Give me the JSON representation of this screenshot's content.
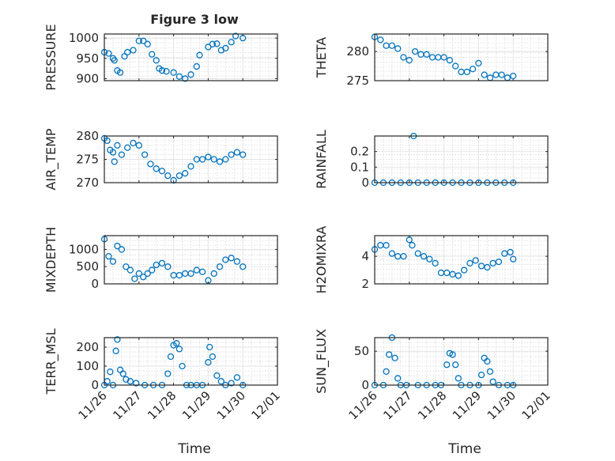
{
  "title": "Figure 3 low",
  "x_axis_label": "Time",
  "x_tick_labels": [
    "11/26",
    "11/27",
    "11/28",
    "11/29",
    "11/30",
    "12/01"
  ],
  "marker_color": "#0072BD",
  "chart_data": [
    {
      "type": "scatter",
      "title": "Figure 3 low",
      "ylabel": "PRESSURE",
      "xlabel": "",
      "xticks": [
        "11/26",
        "11/27",
        "11/28",
        "11/29",
        "11/30",
        "12/01"
      ],
      "xlim": [
        "11/26",
        "12/01"
      ],
      "ylim": [
        895,
        1010
      ],
      "yticks": [
        900,
        950,
        1000
      ],
      "grid": true,
      "series": [
        {
          "x": [
            "11/26 00:00",
            "11/26 03:00",
            "11/26 06:00",
            "11/26 07:00",
            "11/26 09:00",
            "11/26 11:00",
            "11/26 14:00",
            "11/26 16:00",
            "11/26 20:00",
            "11/27 00:00",
            "11/27 03:00",
            "11/27 06:00",
            "11/27 09:00",
            "11/27 12:00",
            "11/27 14:00",
            "11/27 16:00",
            "11/27 19:00",
            "11/28 00:00",
            "11/28 04:00",
            "11/28 08:00",
            "11/28 12:00",
            "11/28 16:00",
            "11/28 18:00",
            "11/29 00:00",
            "11/29 03:00",
            "11/29 06:00",
            "11/29 09:00",
            "11/29 12:00",
            "11/29 16:00",
            "11/29 19:00",
            "11/30 00:00"
          ],
          "y": [
            965,
            962,
            950,
            945,
            920,
            915,
            955,
            965,
            970,
            993,
            993,
            985,
            960,
            945,
            925,
            920,
            918,
            915,
            905,
            900,
            910,
            930,
            958,
            978,
            985,
            986,
            970,
            975,
            990,
            1005,
            1000
          ]
        }
      ]
    },
    {
      "type": "scatter",
      "ylabel": "THETA",
      "xlabel": "",
      "xticks": [
        "11/26",
        "11/27",
        "11/28",
        "11/29",
        "11/30",
        "12/01"
      ],
      "xlim": [
        "11/26",
        "12/01"
      ],
      "ylim": [
        275,
        283
      ],
      "yticks": [
        275,
        280
      ],
      "grid": true,
      "series": [
        {
          "x": [
            "11/26 00:00",
            "11/26 04:00",
            "11/26 08:00",
            "11/26 12:00",
            "11/26 16:00",
            "11/26 20:00",
            "11/27 00:00",
            "11/27 04:00",
            "11/27 08:00",
            "11/27 12:00",
            "11/27 16:00",
            "11/27 20:00",
            "11/28 00:00",
            "11/28 04:00",
            "11/28 08:00",
            "11/28 12:00",
            "11/28 16:00",
            "11/28 20:00",
            "11/29 00:00",
            "11/29 04:00",
            "11/29 08:00",
            "11/29 12:00",
            "11/29 16:00",
            "11/29 20:00",
            "11/30 00:00"
          ],
          "y": [
            282.5,
            282.0,
            281.0,
            281.0,
            280.5,
            279.0,
            278.5,
            280.0,
            279.5,
            279.5,
            279.0,
            279.0,
            279.0,
            278.5,
            277.5,
            276.5,
            276.5,
            277.0,
            278.0,
            276.0,
            275.5,
            276.0,
            276.0,
            275.5,
            275.8
          ]
        }
      ]
    },
    {
      "type": "scatter",
      "ylabel": "AIR_TEMP",
      "xlabel": "",
      "xticks": [
        "11/26",
        "11/27",
        "11/28",
        "11/29",
        "11/30",
        "12/01"
      ],
      "xlim": [
        "11/26",
        "12/01"
      ],
      "ylim": [
        270,
        280
      ],
      "yticks": [
        270,
        275,
        280
      ],
      "grid": true,
      "series": [
        {
          "x": [
            "11/26 00:00",
            "11/26 02:00",
            "11/26 04:00",
            "11/26 06:00",
            "11/26 07:00",
            "11/26 09:00",
            "11/26 12:00",
            "11/26 16:00",
            "11/26 20:00",
            "11/27 00:00",
            "11/27 04:00",
            "11/27 08:00",
            "11/27 12:00",
            "11/27 16:00",
            "11/27 20:00",
            "11/28 00:00",
            "11/28 04:00",
            "11/28 08:00",
            "11/28 12:00",
            "11/28 16:00",
            "11/28 20:00",
            "11/29 00:00",
            "11/29 04:00",
            "11/29 08:00",
            "11/29 12:00",
            "11/29 16:00",
            "11/29 20:00",
            "11/30 00:00"
          ],
          "y": [
            279.5,
            279.0,
            277.0,
            276.5,
            274.5,
            278.0,
            276.0,
            277.5,
            278.5,
            278.0,
            276.0,
            274.0,
            273.0,
            272.5,
            271.5,
            270.5,
            271.5,
            272.0,
            273.5,
            275.0,
            275.0,
            275.5,
            275.0,
            274.5,
            275.0,
            276.0,
            276.5,
            276.0
          ]
        }
      ]
    },
    {
      "type": "scatter",
      "ylabel": "RAINFALL",
      "xlabel": "",
      "xticks": [
        "11/26",
        "11/27",
        "11/28",
        "11/29",
        "11/30",
        "12/01"
      ],
      "xlim": [
        "11/26",
        "12/01"
      ],
      "ylim": [
        0,
        0.3
      ],
      "yticks": [
        0,
        0.1,
        0.2
      ],
      "grid": true,
      "series": [
        {
          "x": [
            "11/26 00:00",
            "11/26 06:00",
            "11/26 12:00",
            "11/26 18:00",
            "11/27 00:00",
            "11/27 03:00",
            "11/27 06:00",
            "11/27 12:00",
            "11/27 18:00",
            "11/28 00:00",
            "11/28 06:00",
            "11/28 12:00",
            "11/28 18:00",
            "11/29 00:00",
            "11/29 06:00",
            "11/29 12:00",
            "11/29 18:00",
            "11/30 00:00"
          ],
          "y": [
            0,
            0,
            0,
            0,
            0,
            0.3,
            0,
            0,
            0,
            0,
            0,
            0,
            0,
            0,
            0,
            0,
            0,
            0
          ]
        }
      ]
    },
    {
      "type": "scatter",
      "ylabel": "MIXDEPTH",
      "xlabel": "",
      "xticks": [
        "11/26",
        "11/27",
        "11/28",
        "11/29",
        "11/30",
        "12/01"
      ],
      "xlim": [
        "11/26",
        "12/01"
      ],
      "ylim": [
        0,
        1400
      ],
      "yticks": [
        0,
        500,
        1000
      ],
      "grid": true,
      "series": [
        {
          "x": [
            "11/26 00:00",
            "11/26 03:00",
            "11/26 06:00",
            "11/26 09:00",
            "11/26 12:00",
            "11/26 15:00",
            "11/26 18:00",
            "11/26 21:00",
            "11/27 00:00",
            "11/27 03:00",
            "11/27 06:00",
            "11/27 09:00",
            "11/27 12:00",
            "11/27 16:00",
            "11/27 20:00",
            "11/28 00:00",
            "11/28 04:00",
            "11/28 08:00",
            "11/28 12:00",
            "11/28 16:00",
            "11/28 20:00",
            "11/29 00:00",
            "11/29 04:00",
            "11/29 08:00",
            "11/29 12:00",
            "11/29 16:00",
            "11/29 20:00",
            "11/30 00:00"
          ],
          "y": [
            1300,
            800,
            650,
            1100,
            1000,
            500,
            400,
            150,
            300,
            200,
            300,
            400,
            550,
            600,
            500,
            250,
            250,
            300,
            300,
            400,
            350,
            100,
            300,
            500,
            700,
            750,
            650,
            500
          ]
        }
      ]
    },
    {
      "type": "scatter",
      "ylabel": "H2OMIXRA",
      "xlabel": "",
      "xticks": [
        "11/26",
        "11/27",
        "11/28",
        "11/29",
        "11/30",
        "12/01"
      ],
      "xlim": [
        "11/26",
        "12/01"
      ],
      "ylim": [
        2,
        5.5
      ],
      "yticks": [
        2,
        4
      ],
      "grid": true,
      "series": [
        {
          "x": [
            "11/26 00:00",
            "11/26 04:00",
            "11/26 08:00",
            "11/26 12:00",
            "11/26 16:00",
            "11/26 20:00",
            "11/27 00:00",
            "11/27 02:00",
            "11/27 06:00",
            "11/27 10:00",
            "11/27 14:00",
            "11/27 18:00",
            "11/27 22:00",
            "11/28 02:00",
            "11/28 06:00",
            "11/28 10:00",
            "11/28 14:00",
            "11/28 18:00",
            "11/28 22:00",
            "11/29 02:00",
            "11/29 06:00",
            "11/29 10:00",
            "11/29 14:00",
            "11/29 18:00",
            "11/29 22:00",
            "11/30 00:00"
          ],
          "y": [
            4.5,
            4.8,
            4.8,
            4.2,
            4.0,
            4.0,
            5.2,
            4.8,
            4.2,
            4.0,
            3.8,
            3.5,
            2.8,
            2.8,
            2.7,
            2.6,
            3.0,
            3.5,
            3.7,
            3.3,
            3.2,
            3.5,
            3.6,
            4.2,
            4.3,
            3.8
          ]
        }
      ]
    },
    {
      "type": "scatter",
      "ylabel": "TERR_MSL",
      "xlabel": "Time",
      "xticks": [
        "11/26",
        "11/27",
        "11/28",
        "11/29",
        "11/30",
        "12/01"
      ],
      "xlim": [
        "11/26",
        "12/01"
      ],
      "ylim": [
        0,
        250
      ],
      "yticks": [
        0,
        100,
        200
      ],
      "grid": true,
      "series": [
        {
          "x": [
            "11/26 00:00",
            "11/26 02:00",
            "11/26 04:00",
            "11/26 06:00",
            "11/26 08:00",
            "11/26 09:00",
            "11/26 11:00",
            "11/26 13:00",
            "11/26 15:00",
            "11/26 18:00",
            "11/26 22:00",
            "11/27 04:00",
            "11/27 10:00",
            "11/27 16:00",
            "11/27 20:00",
            "11/27 22:00",
            "11/28 00:00",
            "11/28 02:00",
            "11/28 04:00",
            "11/28 06:00",
            "11/28 09:00",
            "11/28 12:00",
            "11/28 16:00",
            "11/28 20:00",
            "11/29 00:00",
            "11/29 01:00",
            "11/29 03:00",
            "11/29 06:00",
            "11/29 09:00",
            "11/29 12:00",
            "11/29 16:00",
            "11/29 20:00",
            "11/30 00:00"
          ],
          "y": [
            0,
            20,
            70,
            0,
            180,
            240,
            80,
            60,
            30,
            20,
            10,
            0,
            0,
            0,
            60,
            150,
            210,
            220,
            190,
            100,
            0,
            0,
            0,
            0,
            120,
            200,
            150,
            50,
            20,
            0,
            10,
            40,
            0
          ]
        }
      ]
    },
    {
      "type": "scatter",
      "ylabel": "SUN_FLUX",
      "xlabel": "Time",
      "xticks": [
        "11/26",
        "11/27",
        "11/28",
        "11/29",
        "11/30",
        "12/01"
      ],
      "xlim": [
        "11/26",
        "12/01"
      ],
      "ylim": [
        0,
        70
      ],
      "yticks": [
        0,
        50
      ],
      "grid": true,
      "series": [
        {
          "x": [
            "11/26 00:00",
            "11/26 06:00",
            "11/26 08:00",
            "11/26 10:00",
            "11/26 12:00",
            "11/26 14:00",
            "11/26 16:00",
            "11/26 18:00",
            "11/26 22:00",
            "11/27 06:00",
            "11/27 12:00",
            "11/27 18:00",
            "11/27 22:00",
            "11/28 02:00",
            "11/28 04:00",
            "11/28 06:00",
            "11/28 08:00",
            "11/28 10:00",
            "11/28 12:00",
            "11/28 18:00",
            "11/29 00:00",
            "11/29 02:00",
            "11/29 04:00",
            "11/29 06:00",
            "11/29 08:00",
            "11/29 10:00",
            "11/29 14:00",
            "11/29 20:00",
            "11/30 00:00"
          ],
          "y": [
            0,
            0,
            20,
            45,
            70,
            40,
            10,
            0,
            0,
            0,
            0,
            0,
            0,
            30,
            47,
            45,
            30,
            10,
            0,
            0,
            0,
            15,
            40,
            35,
            20,
            5,
            0,
            0,
            0
          ]
        }
      ]
    }
  ]
}
